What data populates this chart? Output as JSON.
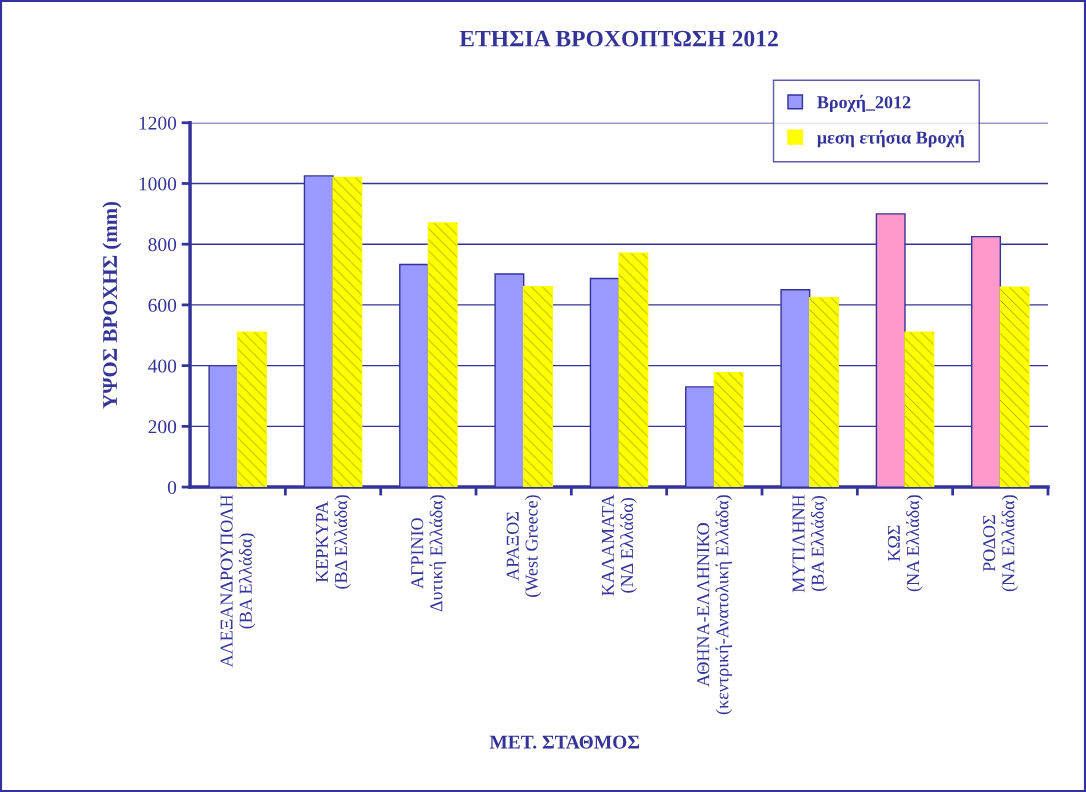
{
  "chart_data": {
    "type": "bar",
    "title": "ΕΤΗΣΙΑ ΒΡΟΧΟΠΤΩΣΗ 2012",
    "xlabel": "ΜΕΤ. ΣΤΑΘΜΟΣ",
    "ylabel": "ΥΨΟΣ ΒΡΟΧΗΣ (mm)",
    "categories": [
      "ΑΛΕΞΑΝΔΡΟΥΠΟΛΗ\n(ΒΑ Ελλάδα)",
      "ΚΕΡΚΥΡΑ\n(ΒΔ Ελλάδα)",
      "ΑΓΡΙΝΙΟ\nΔυτική Ελλάδα)",
      "ΑΡΑΞΟΣ\n(West Greece)",
      "ΚΑΛΑΜΑΤΑ\n(ΝΔ Ελλάδα)",
      "ΑΘΗΝΑ-ΕΛΛΗΝΙΚΟ\n(κεντρική-Ανατολική Ελλάδα)",
      "ΜΥΤΙΛΗΝΗ\n(ΒΑ Ελλάδα)",
      "ΚΩΣ\n(ΝΑ Ελλάδα)",
      "ΡΟΔΟΣ\n(ΝΑ Ελλάδα)"
    ],
    "series": [
      {
        "name": "Βροχή_2012",
        "color": "#9999ff",
        "colors": [
          "#9999ff",
          "#9999ff",
          "#9999ff",
          "#9999ff",
          "#9999ff",
          "#9999ff",
          "#9999ff",
          "#ff99cc",
          "#ff99cc"
        ],
        "values": [
          400,
          1025,
          733,
          702,
          687,
          330,
          650,
          900,
          825
        ]
      },
      {
        "name": "μεση ετήσια Βροχή",
        "color": "#ffff00",
        "values": [
          510,
          1020,
          870,
          660,
          770,
          377,
          624,
          510,
          658
        ]
      }
    ],
    "ylim": [
      0,
      1200
    ],
    "yticks": [
      0,
      200,
      400,
      600,
      800,
      1000,
      1200
    ],
    "grid": "y",
    "legend": "top right"
  }
}
